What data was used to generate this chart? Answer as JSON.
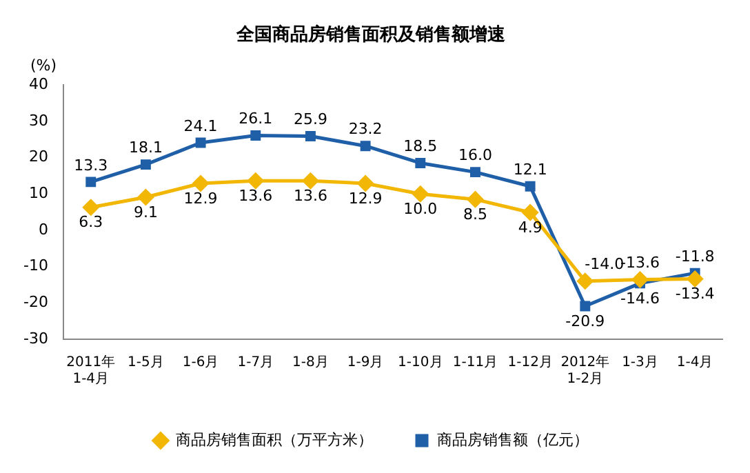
{
  "chart_data": {
    "type": "line",
    "title": "全国商品房销售面积及销售额增速",
    "ylabel": "(%)",
    "categories": [
      "2011年\n1-4月",
      "1-5月",
      "1-6月",
      "1-7月",
      "1-8月",
      "1-9月",
      "1-10月",
      "1-11月",
      "1-12月",
      "2012年\n1-2月",
      "1-3月",
      "1-4月"
    ],
    "series": [
      {
        "name": "商品房销售面积（万平方米）",
        "color": "#f2b705",
        "marker": "diamond",
        "values": [
          6.3,
          9.1,
          12.9,
          13.6,
          13.6,
          12.9,
          10.0,
          8.5,
          4.9,
          -14.0,
          -13.6,
          -13.4
        ],
        "value_labels": [
          "6.3",
          "9.1",
          "12.9",
          "13.6",
          "13.6",
          "12.9",
          "10.0",
          "8.5",
          "4.9",
          "-14.0",
          "-13.6",
          "-13.4"
        ]
      },
      {
        "name": "商品房销售额（亿元）",
        "color": "#1f5fa8",
        "marker": "square",
        "values": [
          13.3,
          18.1,
          24.1,
          26.1,
          25.9,
          23.2,
          18.5,
          16.0,
          12.1,
          -20.9,
          -14.6,
          -11.8
        ],
        "value_labels": [
          "13.3",
          "18.1",
          "24.1",
          "26.1",
          "25.9",
          "23.2",
          "18.5",
          "16.0",
          "12.1",
          "-20.9",
          "-14.6",
          "-11.8"
        ]
      }
    ],
    "ylim": [
      -30,
      40
    ],
    "yticks": [
      -30,
      -20,
      -10,
      0,
      10,
      20,
      30,
      40
    ],
    "grid": false,
    "legend": "bottom"
  }
}
